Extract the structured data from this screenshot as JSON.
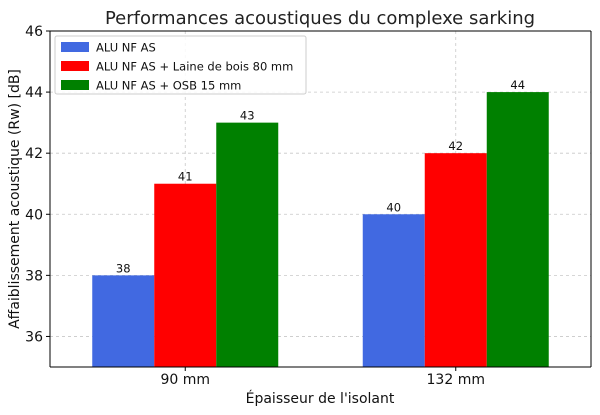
{
  "chart_data": {
    "type": "bar",
    "title": "Performances acoustiques du complexe sarking",
    "xlabel": "Épaisseur de l'isolant",
    "ylabel": "Affaiblissement acoustique (Rw) [dB]",
    "categories": [
      "90 mm",
      "132 mm"
    ],
    "ylim": [
      35,
      46
    ],
    "yticks": [
      36,
      38,
      40,
      42,
      44,
      46
    ],
    "grid": true,
    "legend_position": "top-left",
    "series": [
      {
        "name": "ALU NF AS",
        "color": "#4169e1",
        "values": [
          38,
          40
        ]
      },
      {
        "name": "ALU NF AS + Laine de bois 80 mm",
        "color": "#ff0000",
        "values": [
          41,
          42
        ]
      },
      {
        "name": "ALU NF AS + OSB 15 mm",
        "color": "#008000",
        "values": [
          43,
          44
        ]
      }
    ]
  }
}
